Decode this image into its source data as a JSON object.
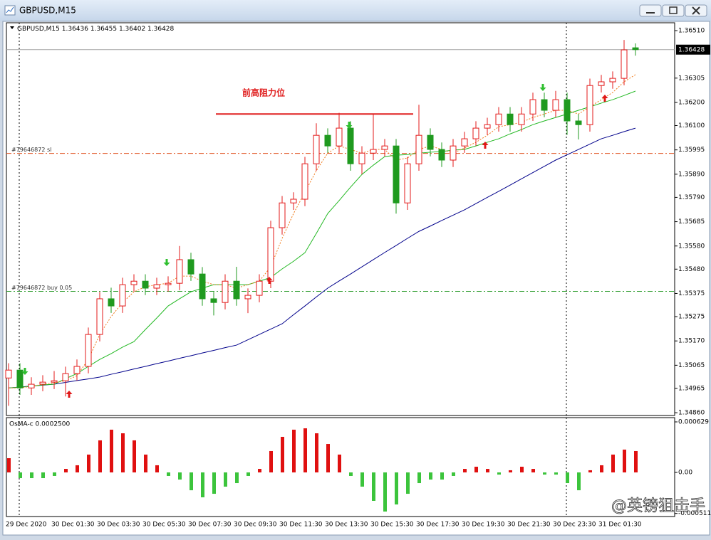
{
  "window_title": "GBPUSD,M15",
  "watermark": "@英镑狙击手",
  "chart_data": [
    {
      "type": "candlestick",
      "title": "GBPUSD,M15",
      "categories": [
        "29 Dec 2020",
        null,
        null,
        null,
        "30 Dec 01:30",
        null,
        null,
        null,
        "30 Dec 03:30",
        null,
        null,
        null,
        "30 Dec 05:30",
        null,
        null,
        null,
        "30 Dec 07:30",
        null,
        null,
        null,
        "30 Dec 09:30",
        null,
        null,
        null,
        "30 Dec 11:30",
        null,
        null,
        null,
        "30 Dec 13:30",
        null,
        null,
        null,
        "30 Dec 15:30",
        null,
        null,
        null,
        "30 Dec 17:30",
        null,
        null,
        null,
        "30 Dec 19:30",
        null,
        null,
        null,
        "30 Dec 21:30",
        null,
        null,
        null,
        "30 Dec 23:30",
        null,
        null,
        null,
        "31 Dec 01:30",
        null,
        null,
        null
      ],
      "open": [
        1.3501,
        1.35044,
        1.34967,
        1.34983,
        1.34992,
        1.34998,
        1.35029,
        1.3506,
        1.35198,
        1.35352,
        1.35321,
        1.35413,
        1.35428,
        1.35398,
        1.35413,
        1.35419,
        1.35521,
        1.35459,
        1.35352,
        1.35336,
        1.35428,
        1.35352,
        1.35367,
        1.35428,
        1.35659,
        1.35766,
        1.35782,
        1.35935,
        1.36058,
        1.36012,
        1.36089,
        1.35935,
        1.35981,
        1.35997,
        1.36012,
        1.35766,
        1.35935,
        1.36058,
        1.35997,
        1.35951,
        1.36012,
        1.36043,
        1.36089,
        1.36104,
        1.3615,
        1.36104,
        1.3615,
        1.36212,
        1.36166,
        1.36212,
        1.3612,
        1.36104,
        1.36273,
        1.36289,
        1.36304,
        1.36436
      ],
      "high": [
        1.35074,
        1.35074,
        1.35013,
        1.35022,
        1.3504,
        1.35059,
        1.3509,
        1.35228,
        1.35382,
        1.354,
        1.35443,
        1.35458,
        1.35458,
        1.35443,
        1.35449,
        1.3558,
        1.35551,
        1.35489,
        1.35382,
        1.35458,
        1.3549,
        1.35397,
        1.35458,
        1.35689,
        1.35796,
        1.35812,
        1.35965,
        1.3611,
        1.36088,
        1.36155,
        1.36119,
        1.36011,
        1.3615,
        1.36042,
        1.36042,
        1.35965,
        1.3619,
        1.36088,
        1.36027,
        1.36042,
        1.36073,
        1.36119,
        1.36134,
        1.3618,
        1.3618,
        1.3618,
        1.36242,
        1.36242,
        1.3625,
        1.36242,
        1.3615,
        1.36303,
        1.36319,
        1.36334,
        1.3647,
        1.36455
      ],
      "low": [
        1.3489,
        1.34937,
        1.34937,
        1.34953,
        1.34962,
        1.3493,
        1.34999,
        1.3503,
        1.35168,
        1.35291,
        1.35291,
        1.35383,
        1.35368,
        1.35368,
        1.35383,
        1.35389,
        1.35429,
        1.35322,
        1.3528,
        1.35306,
        1.35322,
        1.3529,
        1.35337,
        1.35398,
        1.35629,
        1.35736,
        1.35752,
        1.35905,
        1.35982,
        1.35982,
        1.35905,
        1.3589,
        1.35951,
        1.35967,
        1.3572,
        1.35736,
        1.35905,
        1.35967,
        1.35921,
        1.35921,
        1.35982,
        1.36013,
        1.36059,
        1.36074,
        1.36074,
        1.36074,
        1.3612,
        1.36136,
        1.36136,
        1.3606,
        1.3604,
        1.36074,
        1.36243,
        1.36259,
        1.36274,
        1.36402
      ],
      "close": [
        1.35044,
        1.34967,
        1.34983,
        1.34992,
        1.34998,
        1.35029,
        1.3506,
        1.35198,
        1.35352,
        1.35321,
        1.35413,
        1.35428,
        1.35398,
        1.35413,
        1.35419,
        1.35521,
        1.35459,
        1.35352,
        1.35336,
        1.35428,
        1.35352,
        1.35367,
        1.35428,
        1.35659,
        1.35766,
        1.35782,
        1.35935,
        1.36058,
        1.36012,
        1.36089,
        1.35935,
        1.35981,
        1.35997,
        1.36012,
        1.35766,
        1.35935,
        1.36058,
        1.35997,
        1.35951,
        1.36012,
        1.36043,
        1.36089,
        1.36104,
        1.3615,
        1.36104,
        1.3615,
        1.36212,
        1.36166,
        1.36212,
        1.3612,
        1.36104,
        1.36273,
        1.36289,
        1.36304,
        1.36427,
        1.36428
      ],
      "up_color": "#e31a1a",
      "down_color": "#1f9a1f",
      "series": [
        {
          "color": "#00008b",
          "values": [
            1.34967,
            1.34971,
            1.34975,
            1.34979,
            1.34983,
            1.34991,
            1.34999,
            1.35006,
            1.35014,
            1.35026,
            1.35037,
            1.35049,
            1.3506,
            1.35072,
            1.35083,
            1.35095,
            1.35106,
            1.35118,
            1.35129,
            1.35141,
            1.35152,
            1.35175,
            1.35198,
            1.35221,
            1.35244,
            1.35283,
            1.35321,
            1.3536,
            1.35398,
            1.35429,
            1.35459,
            1.3549,
            1.35521,
            1.35552,
            1.35582,
            1.35613,
            1.35643,
            1.35666,
            1.3569,
            1.35713,
            1.35736,
            1.35763,
            1.3579,
            1.35816,
            1.35843,
            1.3587,
            1.35897,
            1.35924,
            1.35951,
            1.35974,
            1.35997,
            1.3602,
            1.36043,
            1.36058,
            1.36074,
            1.36089
          ]
        },
        {
          "color": "#22b822",
          "values": [
            1.34967,
            1.3497,
            1.34974,
            1.3498,
            1.34983,
            1.35007,
            1.35029,
            1.3506,
            1.3509,
            1.35115,
            1.35143,
            1.35167,
            1.35219,
            1.35269,
            1.35321,
            1.35352,
            1.35382,
            1.35398,
            1.35413,
            1.35413,
            1.35413,
            1.35413,
            1.35428,
            1.35444,
            1.35481,
            1.35514,
            1.35551,
            1.35634,
            1.3572,
            1.35776,
            1.35834,
            1.35889,
            1.35929,
            1.35966,
            1.35972,
            1.35975,
            1.35981,
            1.35985,
            1.35988,
            1.35994,
            1.35997,
            1.36012,
            1.36028,
            1.36043,
            1.36064,
            1.36083,
            1.36104,
            1.3612,
            1.36135,
            1.3615,
            1.36166,
            1.36181,
            1.36197,
            1.36212,
            1.3623,
            1.36249
          ]
        },
        {
          "color": "#f07a1a",
          "dashed": true,
          "values": [
            1.34967,
            1.34967,
            1.34974,
            1.34983,
            1.34989,
            1.34998,
            1.3502,
            1.3509,
            1.35198,
            1.35275,
            1.35336,
            1.35382,
            1.35404,
            1.35413,
            1.35419,
            1.3545,
            1.3545,
            1.35428,
            1.35413,
            1.35413,
            1.35398,
            1.35413,
            1.35428,
            1.3549,
            1.35613,
            1.3572,
            1.35812,
            1.35905,
            1.35981,
            1.36012,
            1.35997,
            1.35981,
            1.35997,
            1.35997,
            1.35951,
            1.3596,
            1.35997,
            1.36012,
            1.35997,
            1.35981,
            1.36003,
            1.36028,
            1.36058,
            1.36095,
            1.36104,
            1.36114,
            1.36135,
            1.3615,
            1.36166,
            1.36166,
            1.3615,
            1.36181,
            1.36212,
            1.36243,
            1.36289,
            1.3632
          ]
        }
      ],
      "hlines": [
        {
          "label": "#79646872 sl",
          "value": 1.3598,
          "color": "#e0501e"
        },
        {
          "label": "#79646872 buy 0.05",
          "value": 1.35384,
          "color": "#2f9e2f"
        }
      ],
      "annotation": {
        "text": "前高阻力位",
        "value": 1.3615,
        "color": "#e02020"
      },
      "ylim": [
        1.34848,
        1.36544
      ],
      "yticks": [
        {
          "value": 1.3651,
          "label": "1.36510"
        },
        1.36305,
        {
          "value": 1.362,
          "label": "1.36200"
        },
        {
          "value": 1.361,
          "label": "1.36100"
        },
        1.35995,
        {
          "value": 1.3589,
          "label": "1.35890"
        },
        {
          "value": 1.3579,
          "label": "1.35790"
        },
        1.35685,
        {
          "value": 1.3558,
          "label": "1.35580"
        },
        {
          "value": 1.3548,
          "label": "1.35480"
        },
        1.35375,
        1.35275,
        {
          "value": 1.3517,
          "label": "1.35170"
        },
        1.35065,
        1.34965,
        {
          "value": 1.3486,
          "label": "1.34860"
        }
      ]
    },
    {
      "type": "bar",
      "title": "OsMA-c 0.0002500",
      "up_color": "#e01010",
      "down_color": "#3cc43c",
      "values": [
        0.000177,
        -7.1e-05,
        -7.1e-05,
        -7.1e-05,
        -4.4e-05,
        4.4e-05,
        8.9e-05,
        0.000222,
        0.000399,
        0.000532,
        0.000487,
        0.000399,
        0.000222,
        8.9e-05,
        -4.4e-05,
        -8.9e-05,
        -0.000222,
        -0.00031,
        -0.000266,
        -0.000177,
        -0.000133,
        -4.4e-05,
        4.4e-05,
        0.000266,
        0.000443,
        0.000532,
        0.000549,
        0.000487,
        0.000354,
        0.000222,
        -4.4e-05,
        -0.000177,
        -0.000354,
        -0.000487,
        -0.000399,
        -0.000266,
        -0.000133,
        -8.9e-05,
        -8.9e-05,
        -4.4e-05,
        4.4e-05,
        7.1e-05,
        4.4e-05,
        -2.7e-05,
        2.7e-05,
        7.1e-05,
        4.4e-05,
        -2.7e-05,
        -2.7e-05,
        -0.000133,
        -0.000222,
        2.7e-05,
        8.9e-05,
        0.000222,
        0.000284,
        0.000266
      ],
      "ylim": [
        -0.000549,
        0.000682
      ],
      "yticks": [
        0.000629,
        {
          "value": 0,
          "label": "0.00"
        },
        -0.000511
      ]
    }
  ]
}
